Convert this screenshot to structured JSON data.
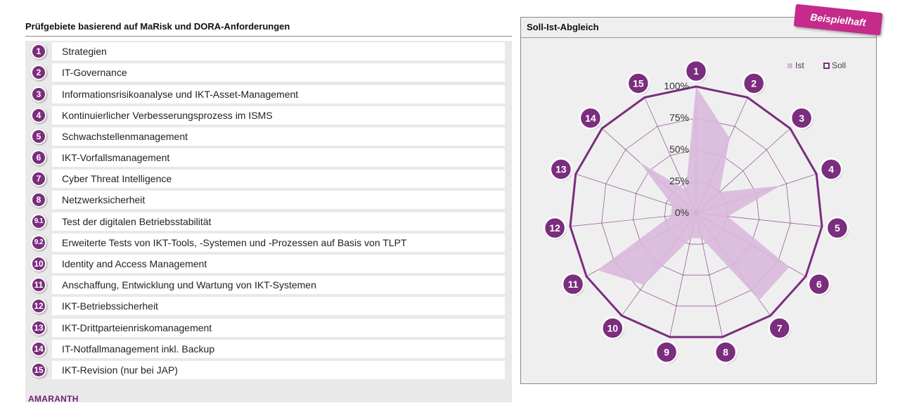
{
  "left_panel": {
    "title": "Prüfgebiete basierend auf MaRisk und DORA-Anforderungen",
    "items": [
      {
        "badge": "1",
        "label": "Strategien"
      },
      {
        "badge": "2",
        "label": "IT-Governance"
      },
      {
        "badge": "3",
        "label": "Informationsrisikoanalyse und IKT-Asset-Management"
      },
      {
        "badge": "4",
        "label": "Kontinuierlicher Verbesserungsprozess im ISMS"
      },
      {
        "badge": "5",
        "label": "Schwachstellenmanagement"
      },
      {
        "badge": "6",
        "label": "IKT-Vorfallsmanagement"
      },
      {
        "badge": "7",
        "label": "Cyber Threat Intelligence"
      },
      {
        "badge": "8",
        "label": "Netzwerksicherheit"
      },
      {
        "badge": "9.1",
        "label": "Test der digitalen Betriebsstabilität"
      },
      {
        "badge": "9.2",
        "label": "Erweiterte Tests von IKT-Tools, -Systemen und -Prozessen auf Basis von TLPT"
      },
      {
        "badge": "10",
        "label": "Identity and Access Management"
      },
      {
        "badge": "11",
        "label": "Anschaffung, Entwicklung und Wartung von IKT-Systemen"
      },
      {
        "badge": "12",
        "label": "IKT-Betriebssicherheit"
      },
      {
        "badge": "13",
        "label": "IKT-Drittparteienriskomanagement"
      },
      {
        "badge": "14",
        "label": "IT-Notfallmanagement inkl. Backup"
      },
      {
        "badge": "15",
        "label": "IKT-Revision (nur bei JAP)"
      }
    ]
  },
  "brand": "AMARANTH",
  "right_panel": {
    "title": "Soll-Ist-Abgleich",
    "stamp": "Beispielhaft"
  },
  "colors": {
    "accent": "#7b2d7e",
    "ist_fill": "#d9b8dc",
    "soll_line": "#7b2d7e",
    "stamp": "#c42b8a"
  },
  "chart_data": {
    "type": "radar",
    "title": "Soll-Ist-Abgleich",
    "categories": [
      "1",
      "2",
      "3",
      "4",
      "5",
      "6",
      "7",
      "8",
      "9",
      "10",
      "11",
      "12",
      "13",
      "14",
      "15"
    ],
    "tick_labels": [
      "0%",
      "25%",
      "50%",
      "75%",
      "100%"
    ],
    "range": [
      0,
      100
    ],
    "legend": [
      "Ist",
      "Soll"
    ],
    "legend_position": "top-right",
    "series": [
      {
        "name": "Ist",
        "values": [
          100,
          65,
          25,
          70,
          25,
          85,
          85,
          20,
          20,
          70,
          90,
          20,
          20,
          60,
          20
        ]
      },
      {
        "name": "Soll",
        "values": [
          100,
          100,
          100,
          100,
          100,
          100,
          100,
          100,
          100,
          100,
          100,
          100,
          100,
          100,
          100
        ]
      }
    ]
  }
}
